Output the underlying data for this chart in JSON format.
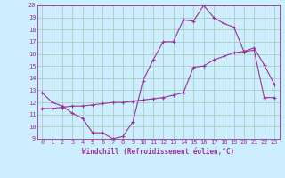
{
  "xlabel": "Windchill (Refroidissement éolien,°C)",
  "background_color": "#cceeff",
  "grid_color": "#aaccbb",
  "line_color": "#993399",
  "xlim": [
    -0.5,
    23.5
  ],
  "ylim": [
    9,
    20
  ],
  "xticks": [
    0,
    1,
    2,
    3,
    4,
    5,
    6,
    7,
    8,
    9,
    10,
    11,
    12,
    13,
    14,
    15,
    16,
    17,
    18,
    19,
    20,
    21,
    22,
    23
  ],
  "yticks": [
    9,
    10,
    11,
    12,
    13,
    14,
    15,
    16,
    17,
    18,
    19,
    20
  ],
  "line1_x": [
    0,
    1,
    2,
    3,
    4,
    5,
    6,
    7,
    8,
    9,
    10,
    11,
    12,
    13,
    14,
    15,
    16,
    17,
    18,
    19,
    20,
    21,
    22,
    23
  ],
  "line1_y": [
    12.8,
    12.0,
    11.7,
    11.1,
    10.7,
    9.5,
    9.5,
    9.0,
    9.2,
    10.4,
    13.8,
    15.5,
    17.0,
    17.0,
    18.8,
    18.7,
    20.0,
    19.0,
    18.5,
    18.2,
    16.2,
    16.5,
    15.1,
    13.5
  ],
  "line2_x": [
    0,
    1,
    2,
    3,
    4,
    5,
    6,
    7,
    8,
    9,
    10,
    11,
    12,
    13,
    14,
    15,
    16,
    17,
    18,
    19,
    20,
    21,
    22,
    23
  ],
  "line2_y": [
    11.5,
    11.5,
    11.6,
    11.7,
    11.7,
    11.8,
    11.9,
    12.0,
    12.0,
    12.1,
    12.2,
    12.3,
    12.4,
    12.6,
    12.8,
    14.9,
    15.0,
    15.5,
    15.8,
    16.1,
    16.2,
    16.3,
    12.4,
    12.4
  ],
  "tick_fontsize": 5.0,
  "xlabel_fontsize": 5.5
}
